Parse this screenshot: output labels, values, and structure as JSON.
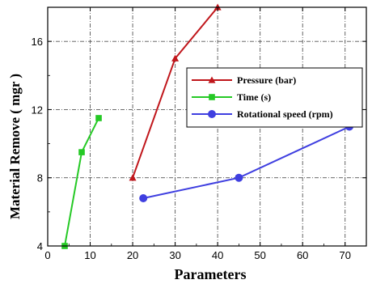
{
  "chart_data": {
    "type": "line",
    "title": "",
    "xlabel": "Parameters",
    "ylabel": "Material Remove ( mgr )",
    "xlim": [
      0,
      75
    ],
    "ylim": [
      4,
      18
    ],
    "xticks": [
      0,
      10,
      20,
      30,
      40,
      50,
      60,
      70
    ],
    "yticks": [
      4,
      8,
      12,
      16
    ],
    "grid": true,
    "legend_position": "right",
    "series": [
      {
        "name": "Pressure (bar)",
        "color": "#c0161b",
        "marker": "triangle",
        "x": [
          20,
          30,
          40
        ],
        "y": [
          8,
          15,
          18
        ]
      },
      {
        "name": "Time (s)",
        "color": "#25c925",
        "marker": "square",
        "x": [
          4,
          8,
          12
        ],
        "y": [
          4,
          9.5,
          11.5
        ]
      },
      {
        "name": "Rotational speed (rpm)",
        "color": "#3f3fe0",
        "marker": "circle",
        "x": [
          22.5,
          45,
          71
        ],
        "y": [
          6.8,
          8,
          11
        ]
      }
    ]
  }
}
